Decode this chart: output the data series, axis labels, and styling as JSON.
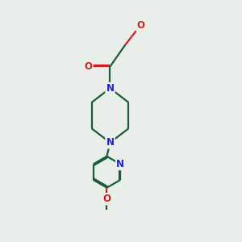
{
  "bg_color": "#eaeeeb",
  "bond_color": "#1a5c3a",
  "N_color": "#2222cc",
  "O_color": "#cc2020",
  "line_width": 1.6,
  "font_size": 8.5,
  "figsize": [
    3.0,
    3.0
  ],
  "dpi": 100,
  "xlim": [
    2.2,
    7.8
  ],
  "ylim": [
    0.0,
    11.0
  ]
}
